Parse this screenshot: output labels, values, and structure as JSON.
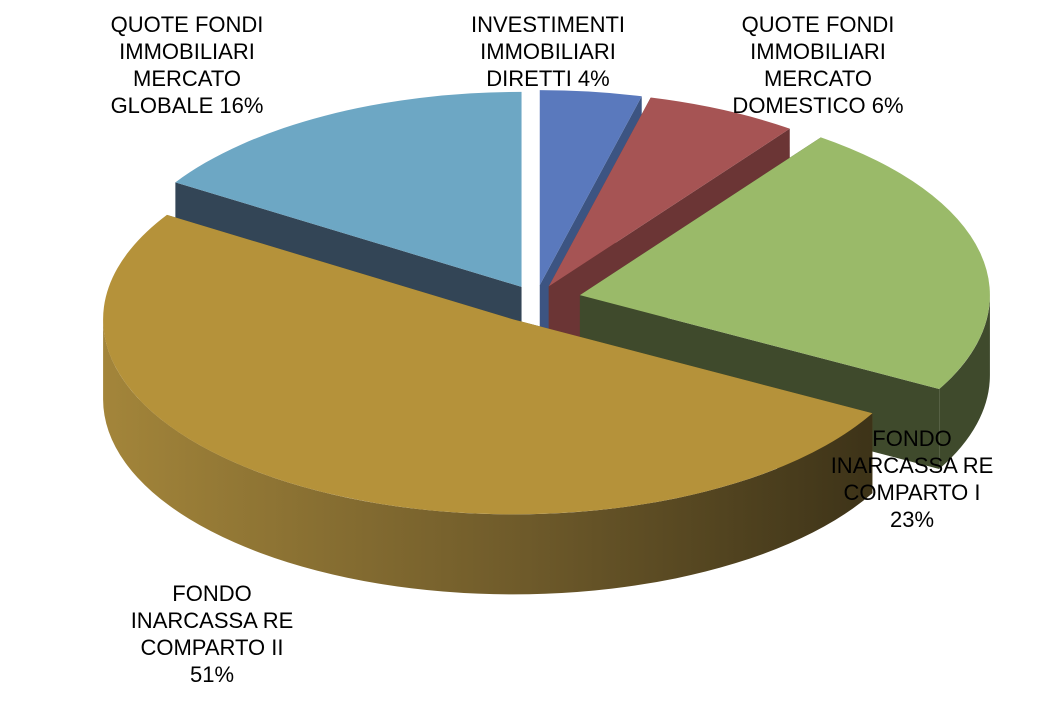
{
  "chart_data": {
    "type": "pie",
    "style": "3d-exploded",
    "slices": [
      {
        "label_lines": [
          "INVESTIMENTI",
          "IMMOBILIARI",
          "DIRETTI   4%"
        ],
        "value": 4,
        "color": "#5a79bd",
        "side_color": "#3c5482"
      },
      {
        "label_lines": [
          "QUOTE FONDI",
          "IMMOBILIARI",
          "MERCATO",
          "DOMESTICO 6%"
        ],
        "value": 6,
        "color": "#a65454",
        "side_color": "#6b3535"
      },
      {
        "label_lines": [
          "FONDO",
          "INARCASSA RE",
          "COMPARTO I",
          "23%"
        ],
        "value": 23,
        "color": "#9aba69",
        "side_color": "#3f4a2c"
      },
      {
        "label_lines": [
          "FONDO",
          "INARCASSA RE",
          "COMPARTO II",
          "51%"
        ],
        "value": 51,
        "color": "#b5923a",
        "side_color": "#6b5722"
      },
      {
        "label_lines": [
          "QUOTE FONDI",
          "IMMOBILIARI",
          "MERCATO",
          "GLOBALE 16%"
        ],
        "value": 16,
        "color": "#6da7c4",
        "side_color": "#334556"
      }
    ],
    "title": "",
    "legend": "none"
  }
}
